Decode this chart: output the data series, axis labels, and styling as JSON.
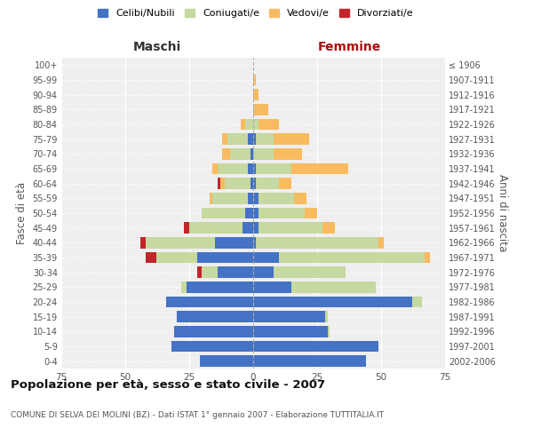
{
  "age_groups": [
    "0-4",
    "5-9",
    "10-14",
    "15-19",
    "20-24",
    "25-29",
    "30-34",
    "35-39",
    "40-44",
    "45-49",
    "50-54",
    "55-59",
    "60-64",
    "65-69",
    "70-74",
    "75-79",
    "80-84",
    "85-89",
    "90-94",
    "95-99",
    "100+"
  ],
  "birth_years": [
    "2002-2006",
    "1997-2001",
    "1992-1996",
    "1987-1991",
    "1982-1986",
    "1977-1981",
    "1972-1976",
    "1967-1971",
    "1962-1966",
    "1957-1961",
    "1952-1956",
    "1947-1951",
    "1942-1946",
    "1937-1941",
    "1932-1936",
    "1927-1931",
    "1922-1926",
    "1917-1921",
    "1912-1916",
    "1907-1911",
    "≤ 1906"
  ],
  "maschi": {
    "celibi": [
      21,
      32,
      31,
      30,
      34,
      26,
      14,
      22,
      15,
      4,
      3,
      2,
      1,
      2,
      1,
      2,
      0,
      0,
      0,
      0,
      0
    ],
    "coniugati": [
      0,
      0,
      0,
      0,
      0,
      2,
      6,
      16,
      27,
      21,
      17,
      14,
      10,
      12,
      8,
      8,
      3,
      0,
      0,
      0,
      0
    ],
    "vedovi": [
      0,
      0,
      0,
      0,
      0,
      0,
      0,
      0,
      0,
      0,
      0,
      1,
      2,
      2,
      3,
      2,
      2,
      0,
      0,
      0,
      0
    ],
    "divorziati": [
      0,
      0,
      0,
      0,
      0,
      0,
      2,
      4,
      2,
      2,
      0,
      0,
      1,
      0,
      0,
      0,
      0,
      0,
      0,
      0,
      0
    ]
  },
  "femmine": {
    "nubili": [
      44,
      49,
      29,
      28,
      62,
      15,
      8,
      10,
      1,
      2,
      2,
      2,
      1,
      1,
      0,
      1,
      0,
      0,
      0,
      0,
      0
    ],
    "coniugate": [
      0,
      0,
      1,
      1,
      4,
      33,
      28,
      57,
      48,
      25,
      18,
      14,
      9,
      14,
      8,
      7,
      2,
      0,
      0,
      0,
      0
    ],
    "vedove": [
      0,
      0,
      0,
      0,
      0,
      0,
      0,
      2,
      2,
      5,
      5,
      5,
      5,
      22,
      11,
      14,
      8,
      6,
      2,
      1,
      0
    ],
    "divorziate": [
      0,
      0,
      0,
      0,
      0,
      0,
      0,
      0,
      0,
      0,
      0,
      0,
      0,
      0,
      0,
      0,
      0,
      0,
      0,
      0,
      0
    ]
  },
  "colors": {
    "celibi": "#4472c4",
    "coniugati": "#c5d9a0",
    "vedovi": "#f8bb5f",
    "divorziati": "#c0262a"
  },
  "xlim": 75,
  "title": "Popolazione per età, sesso e stato civile - 2007",
  "subtitle": "COMUNE DI SELVA DEI MOLINI (BZ) - Dati ISTAT 1° gennaio 2007 - Elaborazione TUTTITALIA.IT",
  "ylabel": "Fasce di età",
  "ylabel_right": "Anni di nascita",
  "xlabel_left": "Maschi",
  "xlabel_right": "Femmine",
  "legend_labels": [
    "Celibi/Nubili",
    "Coniugati/e",
    "Vedovi/e",
    "Divorziati/e"
  ],
  "bg_color": "#ffffff",
  "plot_bg_color": "#efefef"
}
